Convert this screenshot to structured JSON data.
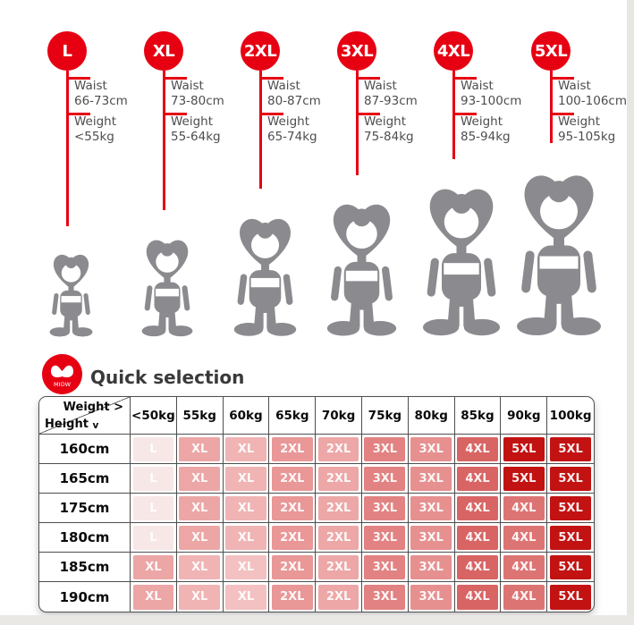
{
  "colors": {
    "accent_red": "#e60012",
    "deep_red": "#c21212",
    "figure_gray": "#8b8b8f",
    "spec_text": "#4d4d4d",
    "title_text": "#3a3a3a",
    "table_border": "#4e4e4e",
    "cell_palette": {
      "L_light": "#f7e7e7",
      "XL_1": "#eca6a6",
      "XL_2": "#f0b4b4",
      "XL_3": "#f3c1c1",
      "XXL_1": "#e99797",
      "XXL_2": "#eda7a7",
      "XXXL_1": "#e28282",
      "XXXL_2": "#e69090",
      "XXXXL_1": "#d86464",
      "XXXXL_2": "#dd7474",
      "XXXXXL": "#c21212"
    }
  },
  "brand": {
    "name": "MIOW"
  },
  "sizes": [
    {
      "label": "L",
      "waist_label": "Waist",
      "waist": "66-73cm",
      "weight_label": "Weight",
      "weight": "<55kg"
    },
    {
      "label": "XL",
      "waist_label": "Waist",
      "waist": "73-80cm",
      "weight_label": "Weight",
      "weight": "55-64kg"
    },
    {
      "label": "2XL",
      "waist_label": "Waist",
      "waist": "80-87cm",
      "weight_label": "Weight",
      "weight": "65-74kg"
    },
    {
      "label": "3XL",
      "waist_label": "Waist",
      "waist": "87-93cm",
      "weight_label": "Weight",
      "weight": "75-84kg"
    },
    {
      "label": "4XL",
      "waist_label": "Waist",
      "waist": "93-100cm",
      "weight_label": "Weight",
      "weight": "85-94kg"
    },
    {
      "label": "5XL",
      "waist_label": "Waist",
      "waist": "100-106cm",
      "weight_label": "Weight",
      "weight": "95-105kg"
    }
  ],
  "quick_selection": {
    "title": "Quick selection",
    "corner": {
      "top": "Weight >",
      "bottom_label": "Height",
      "bottom_arrow": "v"
    },
    "weight_headers": [
      "<50kg",
      "55kg",
      "60kg",
      "65kg",
      "70kg",
      "75kg",
      "80kg",
      "85kg",
      "90kg",
      "100kg"
    ],
    "rows": [
      {
        "height": "160cm",
        "cells": [
          {
            "label": "L",
            "color": "#f7e7e7"
          },
          {
            "label": "XL",
            "color": "#eca6a6"
          },
          {
            "label": "XL",
            "color": "#f0b4b4"
          },
          {
            "label": "2XL",
            "color": "#e99797"
          },
          {
            "label": "2XL",
            "color": "#eda7a7"
          },
          {
            "label": "3XL",
            "color": "#e28282"
          },
          {
            "label": "3XL",
            "color": "#e69090"
          },
          {
            "label": "4XL",
            "color": "#d86464"
          },
          {
            "label": "5XL",
            "color": "#c21212"
          },
          {
            "label": "5XL",
            "color": "#c21212"
          }
        ]
      },
      {
        "height": "165cm",
        "cells": [
          {
            "label": "L",
            "color": "#f7e7e7"
          },
          {
            "label": "XL",
            "color": "#eca6a6"
          },
          {
            "label": "XL",
            "color": "#f0b4b4"
          },
          {
            "label": "2XL",
            "color": "#e99797"
          },
          {
            "label": "2XL",
            "color": "#eda7a7"
          },
          {
            "label": "3XL",
            "color": "#e28282"
          },
          {
            "label": "3XL",
            "color": "#e69090"
          },
          {
            "label": "4XL",
            "color": "#d86464"
          },
          {
            "label": "5XL",
            "color": "#c21212"
          },
          {
            "label": "5XL",
            "color": "#c21212"
          }
        ]
      },
      {
        "height": "175cm",
        "cells": [
          {
            "label": "L",
            "color": "#f7e7e7"
          },
          {
            "label": "XL",
            "color": "#eca6a6"
          },
          {
            "label": "XL",
            "color": "#f0b4b4"
          },
          {
            "label": "2XL",
            "color": "#e99797"
          },
          {
            "label": "2XL",
            "color": "#eda7a7"
          },
          {
            "label": "3XL",
            "color": "#e28282"
          },
          {
            "label": "3XL",
            "color": "#e69090"
          },
          {
            "label": "4XL",
            "color": "#d86464"
          },
          {
            "label": "4XL",
            "color": "#dd7474"
          },
          {
            "label": "5XL",
            "color": "#c21212"
          }
        ]
      },
      {
        "height": "180cm",
        "cells": [
          {
            "label": "L",
            "color": "#f7e7e7"
          },
          {
            "label": "XL",
            "color": "#eca6a6"
          },
          {
            "label": "XL",
            "color": "#f0b4b4"
          },
          {
            "label": "2XL",
            "color": "#e99797"
          },
          {
            "label": "2XL",
            "color": "#eda7a7"
          },
          {
            "label": "3XL",
            "color": "#e28282"
          },
          {
            "label": "3XL",
            "color": "#e69090"
          },
          {
            "label": "4XL",
            "color": "#d86464"
          },
          {
            "label": "4XL",
            "color": "#dd7474"
          },
          {
            "label": "5XL",
            "color": "#c21212"
          }
        ]
      },
      {
        "height": "185cm",
        "cells": [
          {
            "label": "XL",
            "color": "#eca6a6"
          },
          {
            "label": "XL",
            "color": "#f0b4b4"
          },
          {
            "label": "XL",
            "color": "#f3c1c1"
          },
          {
            "label": "2XL",
            "color": "#e99797"
          },
          {
            "label": "2XL",
            "color": "#eda7a7"
          },
          {
            "label": "3XL",
            "color": "#e28282"
          },
          {
            "label": "3XL",
            "color": "#e69090"
          },
          {
            "label": "4XL",
            "color": "#d86464"
          },
          {
            "label": "4XL",
            "color": "#dd7474"
          },
          {
            "label": "5XL",
            "color": "#c21212"
          }
        ]
      },
      {
        "height": "190cm",
        "cells": [
          {
            "label": "XL",
            "color": "#eca6a6"
          },
          {
            "label": "XL",
            "color": "#f0b4b4"
          },
          {
            "label": "XL",
            "color": "#f3c1c1"
          },
          {
            "label": "2XL",
            "color": "#e99797"
          },
          {
            "label": "2XL",
            "color": "#eda7a7"
          },
          {
            "label": "3XL",
            "color": "#e28282"
          },
          {
            "label": "3XL",
            "color": "#e69090"
          },
          {
            "label": "4XL",
            "color": "#d86464"
          },
          {
            "label": "4XL",
            "color": "#dd7474"
          },
          {
            "label": "5XL",
            "color": "#c21212"
          }
        ]
      }
    ]
  },
  "chart_data": {
    "type": "table",
    "title": "Quick selection",
    "columns": [
      "Height \\ Weight",
      "<50kg",
      "55kg",
      "60kg",
      "65kg",
      "70kg",
      "75kg",
      "80kg",
      "85kg",
      "90kg",
      "100kg"
    ],
    "row_labels": [
      "160cm",
      "165cm",
      "175cm",
      "180cm",
      "185cm",
      "190cm"
    ],
    "matrix": [
      [
        "L",
        "XL",
        "XL",
        "2XL",
        "2XL",
        "3XL",
        "3XL",
        "4XL",
        "5XL",
        "5XL"
      ],
      [
        "L",
        "XL",
        "XL",
        "2XL",
        "2XL",
        "3XL",
        "3XL",
        "4XL",
        "5XL",
        "5XL"
      ],
      [
        "L",
        "XL",
        "XL",
        "2XL",
        "2XL",
        "3XL",
        "3XL",
        "4XL",
        "4XL",
        "5XL"
      ],
      [
        "L",
        "XL",
        "XL",
        "2XL",
        "2XL",
        "3XL",
        "3XL",
        "4XL",
        "4XL",
        "5XL"
      ],
      [
        "XL",
        "XL",
        "XL",
        "2XL",
        "2XL",
        "3XL",
        "3XL",
        "4XL",
        "4XL",
        "5XL"
      ],
      [
        "XL",
        "XL",
        "XL",
        "2XL",
        "2XL",
        "3XL",
        "3XL",
        "4XL",
        "4XL",
        "5XL"
      ]
    ],
    "size_specs": [
      {
        "size": "L",
        "waist": "66-73cm",
        "weight": "<55kg"
      },
      {
        "size": "XL",
        "waist": "73-80cm",
        "weight": "55-64kg"
      },
      {
        "size": "2XL",
        "waist": "80-87cm",
        "weight": "65-74kg"
      },
      {
        "size": "3XL",
        "waist": "87-93cm",
        "weight": "75-84kg"
      },
      {
        "size": "4XL",
        "waist": "93-100cm",
        "weight": "85-94kg"
      },
      {
        "size": "5XL",
        "waist": "100-106cm",
        "weight": "95-105kg"
      }
    ],
    "layout_hint": "heatmap-style size recommendation table; cell shading darkens from light pink (L) to deep red (5XL)"
  }
}
